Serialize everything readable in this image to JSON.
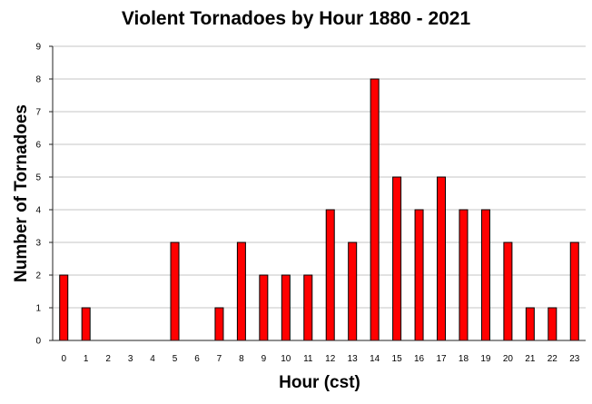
{
  "chart_data": {
    "type": "bar",
    "title": "Violent Tornadoes by Hour 1880 - 2021",
    "xlabel": "Hour (cst)",
    "ylabel": "Number of Tornadoes",
    "categories": [
      "0",
      "1",
      "2",
      "3",
      "4",
      "5",
      "6",
      "7",
      "8",
      "9",
      "10",
      "11",
      "12",
      "13",
      "14",
      "15",
      "16",
      "17",
      "18",
      "19",
      "20",
      "21",
      "22",
      "23"
    ],
    "values": [
      2,
      1,
      0,
      0,
      0,
      3,
      0,
      1,
      3,
      2,
      2,
      2,
      4,
      3,
      8,
      5,
      4,
      5,
      4,
      4,
      3,
      1,
      1,
      3
    ],
    "ylim": [
      0,
      9
    ],
    "yticks": [
      "0",
      "1",
      "2",
      "3",
      "4",
      "5",
      "6",
      "7",
      "8",
      "9"
    ],
    "grid": true,
    "legend": "none",
    "bar_color": "#ff0000"
  }
}
